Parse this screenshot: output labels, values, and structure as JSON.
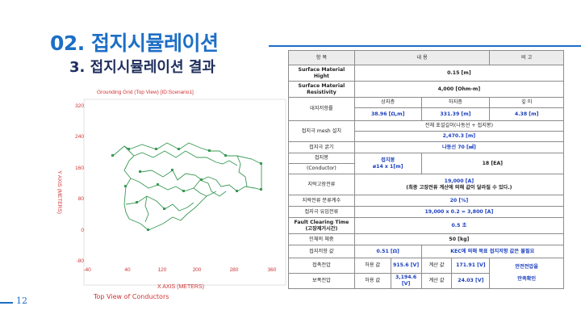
{
  "header": {
    "title": "02. 접지시뮬레이션",
    "subtitle": "3. 접지시뮬레이션 결과"
  },
  "page_number": "12",
  "plot": {
    "title": "Grounding Grid (Top View) [ID:Scenario1]",
    "y_label": "Y AXIS (METERS)",
    "x_label": "X AXIS  (METERS)",
    "x_ticks": [
      "-40",
      "40",
      "120",
      "200",
      "280",
      "360"
    ],
    "y_ticks": [
      "320",
      "240",
      "160",
      "80",
      "0",
      "-80"
    ],
    "caption": "Top View of Conductors"
  },
  "colors": {
    "accent": "#1d6fc6",
    "navy": "#1f2f5c",
    "value_blue": "#1a3fbf",
    "plot_red": "#d13434",
    "grid_green": "#3a9a55"
  },
  "table": {
    "head": {
      "item": "항  목",
      "content": "내  용",
      "note": "비  고"
    },
    "surface_height": {
      "label": "Surface Material Hight",
      "value": "0.15 [m]"
    },
    "surface_resistivity": {
      "label": "Surface Material Resistivity",
      "value": "4,000 [Ohm-m]"
    },
    "earth_resistivity": {
      "label": "대지저항률",
      "upper": "상지층",
      "lower": "하지층",
      "depth": "깊 이",
      "upper_value": "38.96 [Ω,m]",
      "lower_value": "331.39 [m]",
      "depth_value": "4.38 [m]"
    },
    "mesh": {
      "label": "접지극 mesh 설치",
      "desc": "전체 포설길이(나동선 + 접지봉)",
      "value": "2,470.3 [m]"
    },
    "thickness": {
      "label": "접지극 굵기",
      "value": "나동선 70 [㎟]"
    },
    "rod": {
      "label": "접지봉",
      "label2": "(Conductor)",
      "name": "접지봉",
      "spec": "ø14 x 1[m]",
      "count": "18 [EA]"
    },
    "fault_current": {
      "label": "지락고장전류",
      "value": "19,000 [A]",
      "note": "(최종 고장전류 계산에 의해 값이 달라질 수 있다.)"
    },
    "split_factor": {
      "label": "지락전류 분류계수",
      "value": "20 [%]"
    },
    "inflow_current": {
      "label": "접지극 유입전류",
      "value": "19,000 x 0.2 = 3,800 [A]"
    },
    "clearing_time": {
      "label": "Fault Clearing Time",
      "label2": "(고장제거시간)",
      "value": "0.5 초"
    },
    "body_weight": {
      "label": "인체의 체중",
      "value": "50 [kg]"
    },
    "ground_resistance": {
      "label": "접지저항 값",
      "value": "0.51 [Ω]",
      "note": "KEC에 의해 목표 접지저항 값은 불필요"
    },
    "touch_voltage": {
      "label": "접촉전압",
      "allow": "허용 값",
      "allow_value": "915.6 [V]",
      "calc": "계산 값",
      "calc_value": "171.91 [V]"
    },
    "step_voltage": {
      "label": "보폭전압",
      "allow": "허용 값",
      "allow_value": "3,194.6 [V]",
      "calc": "계산 값",
      "calc_value": "24.03 [V]"
    },
    "safety_note_1": "안전전압을",
    "safety_note_2": "만족확인"
  }
}
